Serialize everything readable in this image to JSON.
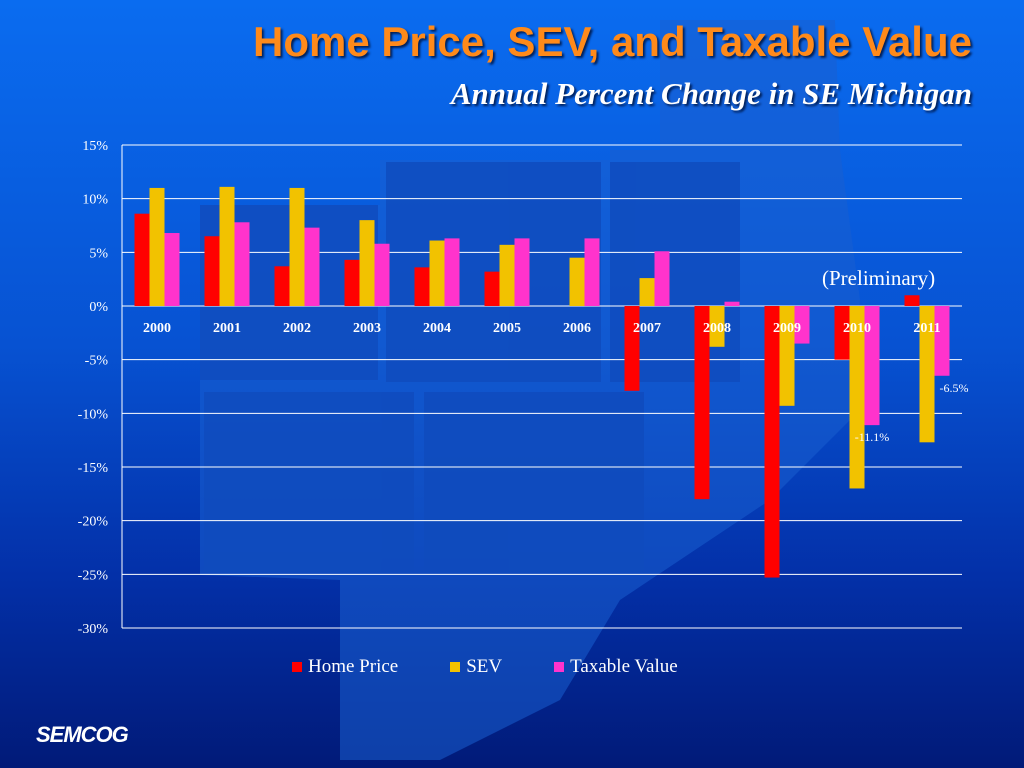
{
  "slide": {
    "title": "Home Price, SEV, and Taxable Value",
    "subtitle": "Annual Percent Change in SE Michigan",
    "annotation": "(Preliminary)",
    "logo": "SEMCOG"
  },
  "chart_data": {
    "type": "bar",
    "categories": [
      "2000",
      "2001",
      "2002",
      "2003",
      "2004",
      "2005",
      "2006",
      "2007",
      "2008",
      "2009",
      "2010",
      "2011"
    ],
    "series": [
      {
        "name": "Home Price",
        "color": "#ff0000",
        "values": [
          8.6,
          6.5,
          3.7,
          4.3,
          3.6,
          3.2,
          null,
          -7.9,
          -18.0,
          -25.3,
          -5.0,
          1.0
        ]
      },
      {
        "name": "SEV",
        "color": "#f2c200",
        "values": [
          11.0,
          11.1,
          11.0,
          8.0,
          6.1,
          5.7,
          4.5,
          2.6,
          -3.8,
          -9.3,
          -17.0,
          -12.7
        ]
      },
      {
        "name": "Taxable Value",
        "color": "#ff33cc",
        "values": [
          6.8,
          7.8,
          7.3,
          5.8,
          6.3,
          6.3,
          6.3,
          5.1,
          0.4,
          -3.5,
          -11.1,
          -6.5
        ]
      }
    ],
    "ylim": [
      -30,
      15
    ],
    "yticks": [
      "15%",
      "10%",
      "5%",
      "0%",
      "-5%",
      "-10%",
      "-15%",
      "-20%",
      "-25%",
      "-30%"
    ],
    "ytick_values": [
      15,
      10,
      5,
      0,
      -5,
      -10,
      -15,
      -20,
      -25,
      -30
    ],
    "data_labels": [
      {
        "text": "-6.5%",
        "series": "Taxable Value",
        "category": "2011"
      },
      {
        "text": "-11.1%",
        "series": "Taxable Value",
        "category": "2010"
      }
    ],
    "grid": true,
    "legend_position": "bottom"
  }
}
